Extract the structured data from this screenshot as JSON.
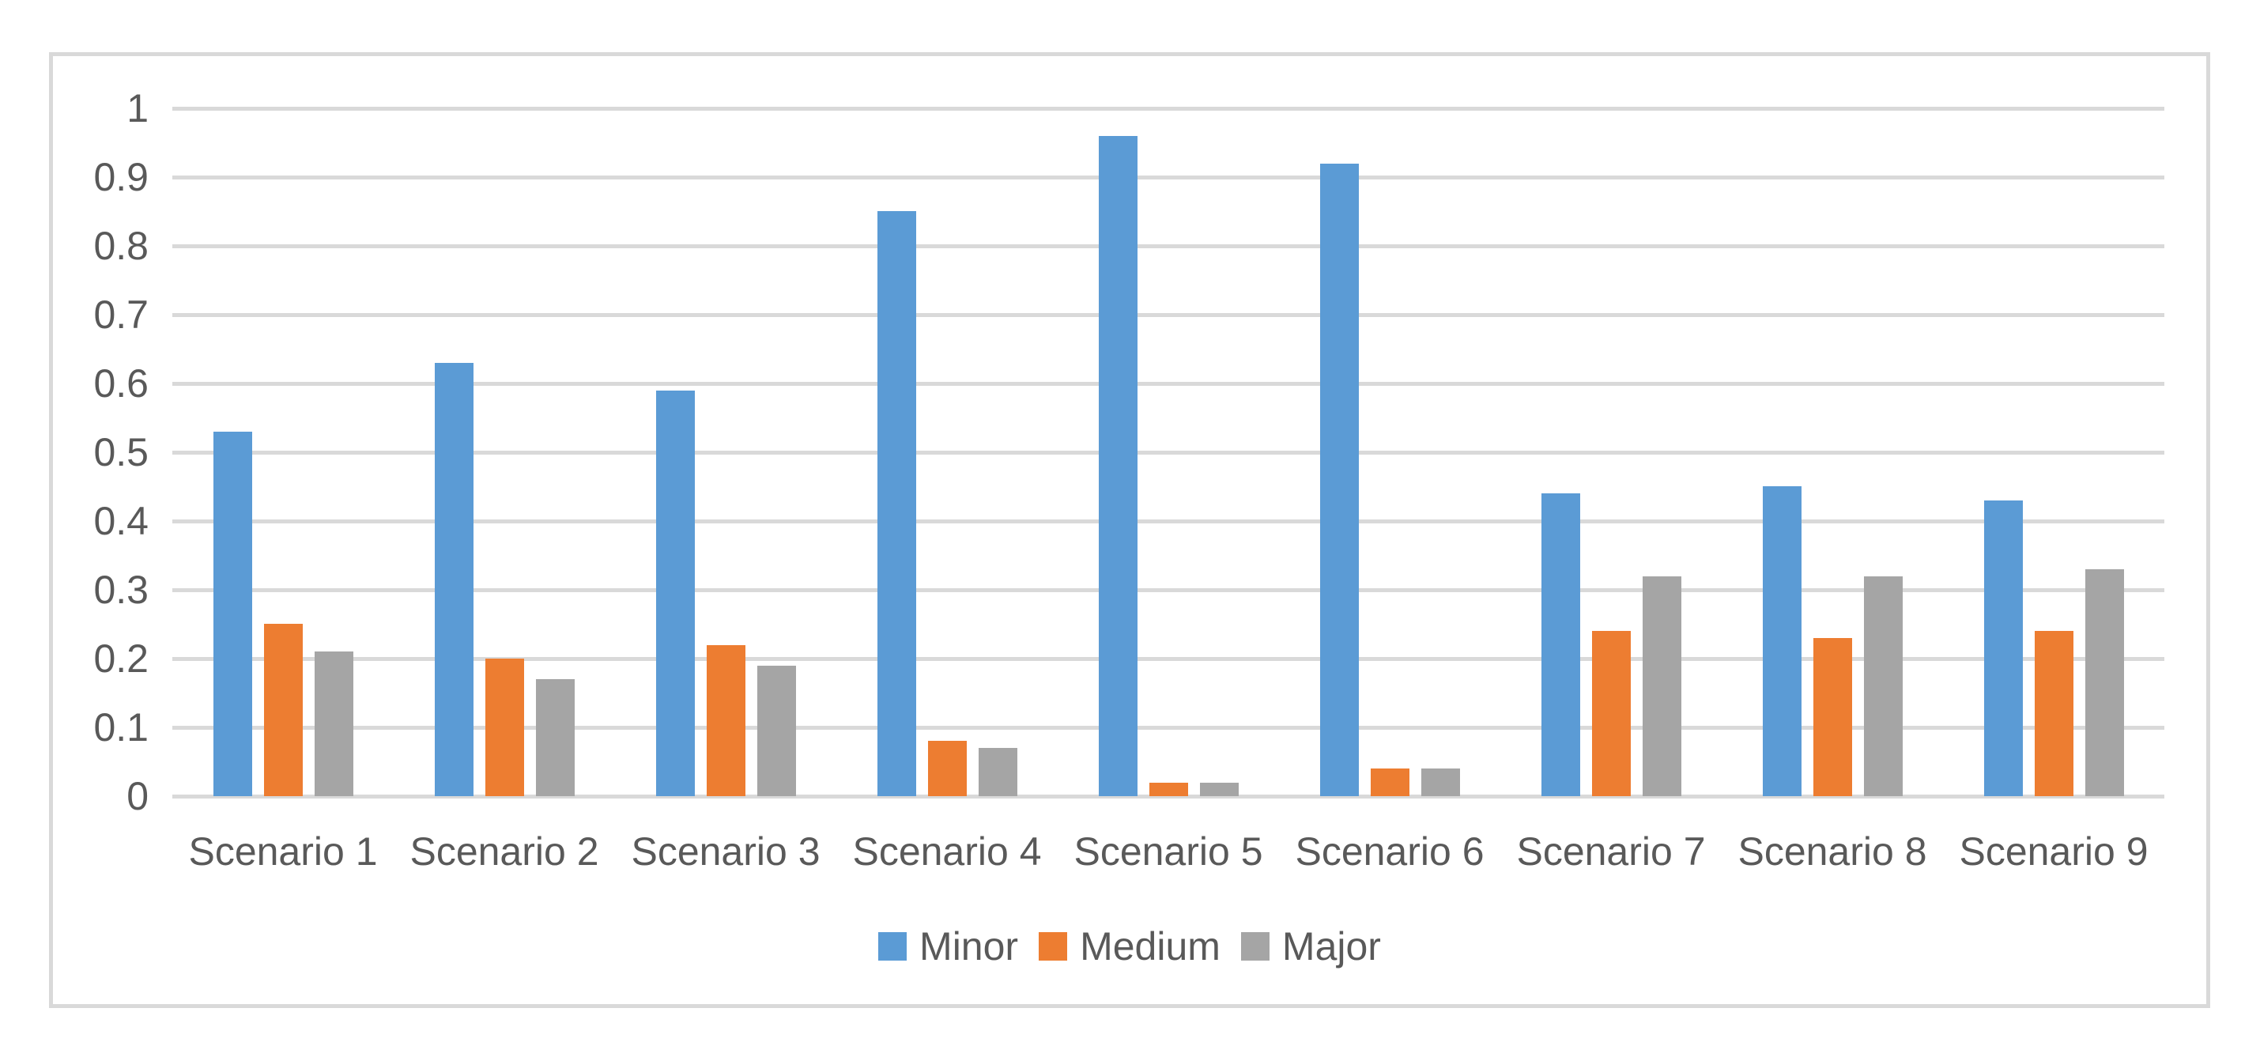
{
  "chart_data": {
    "type": "bar",
    "title": "",
    "xlabel": "",
    "ylabel": "",
    "categories": [
      "Scenario 1",
      "Scenario 2",
      "Scenario 3",
      "Scenario 4",
      "Scenario 5",
      "Scenario 6",
      "Scenario 7",
      "Scenario 8",
      "Scenario 9"
    ],
    "series": [
      {
        "name": "Minor",
        "color": "#5B9BD5",
        "values": [
          0.53,
          0.63,
          0.59,
          0.85,
          0.96,
          0.92,
          0.44,
          0.45,
          0.43
        ]
      },
      {
        "name": "Medium",
        "color": "#ED7D31",
        "values": [
          0.25,
          0.2,
          0.22,
          0.08,
          0.02,
          0.04,
          0.24,
          0.23,
          0.24
        ]
      },
      {
        "name": "Major",
        "color": "#A5A5A5",
        "values": [
          0.21,
          0.17,
          0.19,
          0.07,
          0.02,
          0.04,
          0.32,
          0.32,
          0.33
        ]
      }
    ],
    "ylim": [
      0,
      1
    ],
    "y_ticks": {
      "values": [
        0,
        0.1,
        0.2,
        0.3,
        0.4,
        0.5,
        0.6,
        0.7,
        0.8,
        0.9,
        1
      ],
      "labels": [
        "0",
        "0.1",
        "0.2",
        "0.3",
        "0.4",
        "0.5",
        "0.6",
        "0.7",
        "0.8",
        "0.9",
        "1"
      ]
    },
    "grid": "horizontal",
    "legend_position": "bottom",
    "colors": {
      "gridline": "#D9D9D9",
      "frame_border": "#D9D9D9",
      "axis_text": "#595959",
      "background": "#ffffff"
    }
  }
}
